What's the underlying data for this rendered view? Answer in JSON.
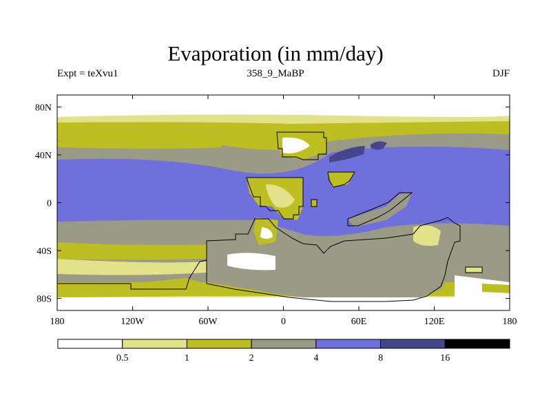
{
  "title": "Evaporation (in mm/day)",
  "subtitle_left": "Expt = teXvu1",
  "subtitle_center": "358_9_MaBP",
  "subtitle_right": "DJF",
  "map": {
    "lon_ticks": [
      "180",
      "120W",
      "60W",
      "0",
      "60E",
      "120E",
      "180"
    ],
    "lat_ticks": [
      "80N",
      "40N",
      "0",
      "40S",
      "80S"
    ],
    "lat_values": [
      80,
      40,
      0,
      -40,
      -80
    ],
    "lon_values": [
      -180,
      -120,
      -60,
      0,
      60,
      120,
      180
    ],
    "lat_range": [
      -90,
      90
    ],
    "lon_range": [
      -180,
      180
    ]
  },
  "colorbar": {
    "labels": [
      "0.5",
      "1",
      "2",
      "4",
      "8",
      "16"
    ],
    "colors": [
      "#ffffff",
      "#e2e28a",
      "#bebe22",
      "#9a9a86",
      "#7070dc",
      "#46468c",
      "#000000"
    ]
  }
}
